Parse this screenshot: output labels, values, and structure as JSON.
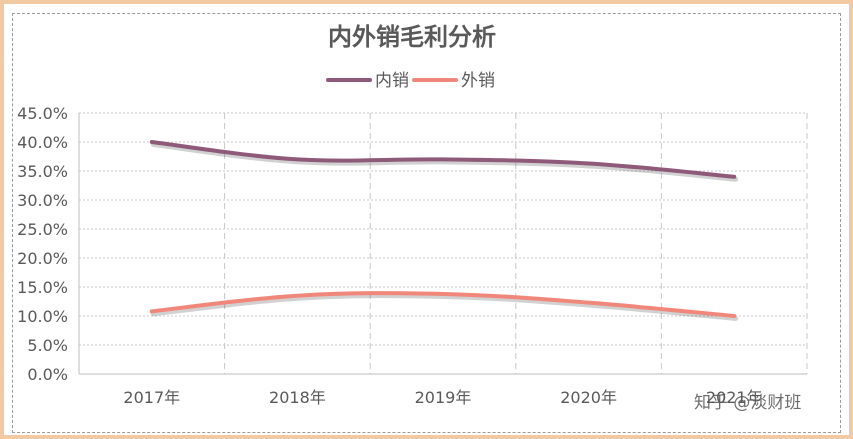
{
  "chart_data": {
    "type": "line",
    "title": "内外销毛利分析",
    "categories": [
      "2017年",
      "2018年",
      "2019年",
      "2020年",
      "2021年"
    ],
    "series": [
      {
        "name": "内销",
        "color": "#8f5a7a",
        "values": [
          40.0,
          37.0,
          37.0,
          36.3,
          34.0
        ]
      },
      {
        "name": "外销",
        "color": "#f0877a",
        "values": [
          10.8,
          13.5,
          13.8,
          12.3,
          10.0
        ]
      }
    ],
    "y_ticks": [
      "0.0%",
      "5.0%",
      "10.0%",
      "15.0%",
      "20.0%",
      "25.0%",
      "30.0%",
      "35.0%",
      "40.0%",
      "45.0%"
    ],
    "ylim": [
      0,
      45
    ],
    "y_unit": "%",
    "legend_position": "top",
    "grid": {
      "horizontal": "dotted",
      "vertical": "dashed"
    },
    "line_style": "smooth"
  },
  "watermark": "知乎 @淡财班",
  "colors": {
    "frame_border": "#f3c9a4",
    "title": "#595959",
    "axis_text": "#595959",
    "grid": "#c8c8c8"
  }
}
